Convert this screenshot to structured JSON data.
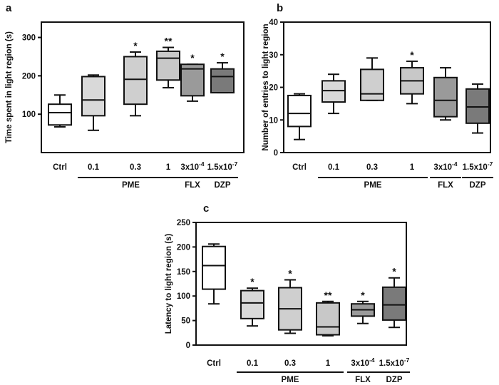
{
  "chart_data": [
    {
      "panel": "a",
      "type": "boxplot",
      "ylabel": "Time spent in light region (s)",
      "ylim": [
        0,
        340
      ],
      "yticks": [
        100,
        200,
        300
      ],
      "categories": [
        "Ctrl",
        "0.1",
        "0.3",
        "1",
        "3x10",
        "1.5x10"
      ],
      "exponents": [
        "",
        "",
        "",
        "",
        "-4",
        "-7"
      ],
      "fills": [
        "#ffffff",
        "#d9d9d9",
        "#cfcfcf",
        "#c8c8c8",
        "#9a9a9a",
        "#7a7a7a"
      ],
      "boxes": [
        {
          "min": 67,
          "q1": 72,
          "median": 104,
          "q3": 126,
          "max": 150
        },
        {
          "min": 58,
          "q1": 96,
          "median": 137,
          "q3": 198,
          "max": 202
        },
        {
          "min": 96,
          "q1": 126,
          "median": 191,
          "q3": 250,
          "max": 262
        },
        {
          "min": 169,
          "q1": 189,
          "median": 246,
          "q3": 264,
          "max": 274
        },
        {
          "min": 134,
          "q1": 148,
          "median": 218,
          "q3": 230,
          "max": 230
        },
        {
          "min": 156,
          "q1": 156,
          "median": 198,
          "q3": 218,
          "max": 234
        }
      ],
      "significance": [
        "",
        "",
        "*",
        "**",
        "*",
        "*"
      ],
      "groups": [
        {
          "label": "PME",
          "from": 1,
          "to": 3
        },
        {
          "label": "FLX",
          "from": 4,
          "to": 4
        },
        {
          "label": "DZP",
          "from": 5,
          "to": 5
        }
      ]
    },
    {
      "panel": "b",
      "type": "boxplot",
      "ylabel": "Number of entries to light region",
      "ylim": [
        0,
        40
      ],
      "yticks": [
        0,
        10,
        20,
        30,
        40
      ],
      "categories": [
        "Ctrl",
        "0.1",
        "0.3",
        "1",
        "3x10",
        "1.5x10"
      ],
      "exponents": [
        "",
        "",
        "",
        "",
        "-4",
        "-7"
      ],
      "fills": [
        "#ffffff",
        "#d9d9d9",
        "#cfcfcf",
        "#c8c8c8",
        "#9a9a9a",
        "#7a7a7a"
      ],
      "boxes": [
        {
          "min": 4,
          "q1": 8,
          "median": 12,
          "q3": 17.5,
          "max": 18
        },
        {
          "min": 12,
          "q1": 15.5,
          "median": 19,
          "q3": 22,
          "max": 24
        },
        {
          "min": 16,
          "q1": 16,
          "median": 18,
          "q3": 25.5,
          "max": 29
        },
        {
          "min": 15,
          "q1": 18,
          "median": 22,
          "q3": 26,
          "max": 28
        },
        {
          "min": 10,
          "q1": 11,
          "median": 16,
          "q3": 23,
          "max": 26
        },
        {
          "min": 6,
          "q1": 9,
          "median": 14,
          "q3": 19.5,
          "max": 21
        }
      ],
      "significance": [
        "",
        "",
        "",
        "*",
        "",
        ""
      ],
      "groups": [
        {
          "label": "PME",
          "from": 1,
          "to": 3
        },
        {
          "label": "FLX",
          "from": 4,
          "to": 4
        },
        {
          "label": "DZP",
          "from": 5,
          "to": 5
        }
      ]
    },
    {
      "panel": "c",
      "type": "boxplot",
      "ylabel": "Latency to light region (s)",
      "ylim": [
        0,
        250
      ],
      "yticks": [
        0,
        50,
        100,
        150,
        200,
        250
      ],
      "categories": [
        "Ctrl",
        "0.1",
        "0.3",
        "1",
        "3x10",
        "1.5x10"
      ],
      "exponents": [
        "",
        "",
        "",
        "",
        "-4",
        "-7"
      ],
      "fills": [
        "#ffffff",
        "#d9d9d9",
        "#cfcfcf",
        "#c8c8c8",
        "#9a9a9a",
        "#7a7a7a"
      ],
      "boxes": [
        {
          "min": 84,
          "q1": 114,
          "median": 162,
          "q3": 201,
          "max": 206
        },
        {
          "min": 39,
          "q1": 54,
          "median": 86,
          "q3": 111,
          "max": 116
        },
        {
          "min": 24,
          "q1": 31,
          "median": 74,
          "q3": 117,
          "max": 133
        },
        {
          "min": 19,
          "q1": 21,
          "median": 37,
          "q3": 86,
          "max": 89
        },
        {
          "min": 44,
          "q1": 59,
          "median": 72,
          "q3": 84,
          "max": 89
        },
        {
          "min": 36,
          "q1": 51,
          "median": 82,
          "q3": 118,
          "max": 137
        }
      ],
      "significance": [
        "",
        "*",
        "*",
        "**",
        "*",
        "*"
      ],
      "groups": [
        {
          "label": "PME",
          "from": 1,
          "to": 3
        },
        {
          "label": "FLX",
          "from": 4,
          "to": 4
        },
        {
          "label": "DZP",
          "from": 5,
          "to": 5
        }
      ]
    }
  ]
}
